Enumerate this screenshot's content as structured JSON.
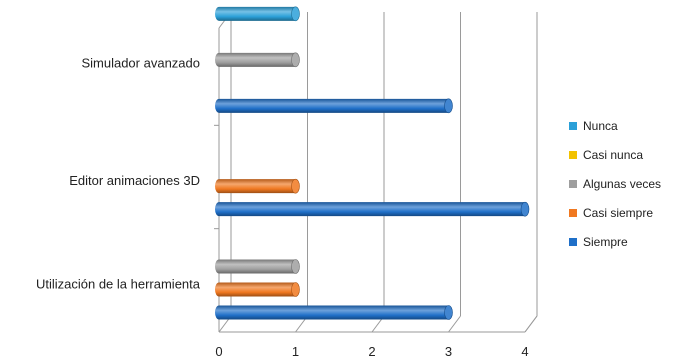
{
  "chart_data": {
    "type": "bar",
    "orientation": "horizontal",
    "style": "3d-cylinder",
    "title": "",
    "xlabel": "",
    "ylabel": "",
    "xlim": [
      0,
      4
    ],
    "xticks": [
      "0",
      "1",
      "2",
      "3",
      "4"
    ],
    "grid": true,
    "legend_position": "right",
    "categories": [
      "Simulador avanzado",
      "Editor animaciones 3D",
      "Utilización de la herramienta"
    ],
    "series": [
      {
        "name": "Nunca",
        "color": "#2BA0D8",
        "values": [
          1,
          0,
          0
        ]
      },
      {
        "name": "Casi nunca",
        "color": "#F2C200",
        "values": [
          0,
          0,
          0
        ]
      },
      {
        "name": "Algunas veces",
        "color": "#9E9E9E",
        "values": [
          1,
          0,
          1
        ]
      },
      {
        "name": "Casi siempre",
        "color": "#F07820",
        "values": [
          0,
          1,
          1
        ]
      },
      {
        "name": "Siempre",
        "color": "#1F6FC8",
        "values": [
          3,
          4,
          3
        ]
      }
    ]
  }
}
